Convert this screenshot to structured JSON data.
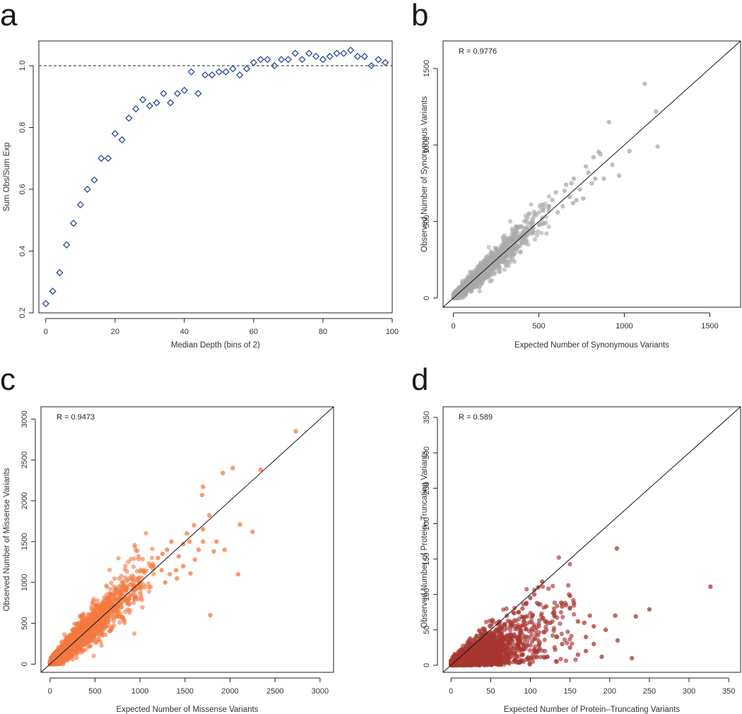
{
  "chart_data": [
    {
      "panel": "a",
      "type": "scatter",
      "marker": "diamond",
      "color": "#2c4a9a",
      "xlabel": "Median Depth (bins of 2)",
      "ylabel": "Sum Obs/Sum Exp",
      "xlim": [
        -2,
        100
      ],
      "ylim": [
        0.2,
        1.08
      ],
      "xticks": [
        0,
        20,
        40,
        60,
        80,
        100
      ],
      "yticks": [
        0.2,
        0.4,
        0.6,
        0.8,
        1.0
      ],
      "ytick_labels": [
        "0.2",
        "0.4",
        "0.6",
        "0.8",
        "1.0"
      ],
      "reference_line": {
        "y": 1.0,
        "style": "dashed"
      },
      "points": [
        [
          0,
          0.23
        ],
        [
          2,
          0.27
        ],
        [
          4,
          0.33
        ],
        [
          6,
          0.42
        ],
        [
          8,
          0.49
        ],
        [
          10,
          0.55
        ],
        [
          12,
          0.6
        ],
        [
          14,
          0.63
        ],
        [
          16,
          0.7
        ],
        [
          18,
          0.7
        ],
        [
          20,
          0.78
        ],
        [
          22,
          0.76
        ],
        [
          24,
          0.83
        ],
        [
          26,
          0.86
        ],
        [
          28,
          0.89
        ],
        [
          30,
          0.87
        ],
        [
          32,
          0.88
        ],
        [
          34,
          0.91
        ],
        [
          36,
          0.88
        ],
        [
          38,
          0.91
        ],
        [
          40,
          0.92
        ],
        [
          42,
          0.98
        ],
        [
          44,
          0.91
        ],
        [
          46,
          0.97
        ],
        [
          48,
          0.97
        ],
        [
          50,
          0.98
        ],
        [
          52,
          0.98
        ],
        [
          54,
          0.99
        ],
        [
          56,
          0.97
        ],
        [
          58,
          0.99
        ],
        [
          60,
          1.01
        ],
        [
          62,
          1.02
        ],
        [
          64,
          1.02
        ],
        [
          66,
          1.0
        ],
        [
          68,
          1.02
        ],
        [
          70,
          1.02
        ],
        [
          72,
          1.04
        ],
        [
          74,
          1.02
        ],
        [
          76,
          1.04
        ],
        [
          78,
          1.03
        ],
        [
          80,
          1.02
        ],
        [
          82,
          1.03
        ],
        [
          84,
          1.04
        ],
        [
          86,
          1.04
        ],
        [
          88,
          1.05
        ],
        [
          90,
          1.03
        ],
        [
          92,
          1.03
        ],
        [
          94,
          1.0
        ],
        [
          96,
          1.02
        ],
        [
          98,
          1.01
        ]
      ]
    },
    {
      "panel": "b",
      "type": "scatter",
      "color": "#a9a9a9",
      "r_text": "R = 0.9776",
      "xlabel": "Expected Number of Synonymous Variants",
      "ylabel": "Observed Number of Synonymous Variants",
      "xlim": [
        -60,
        1680
      ],
      "ylim": [
        -60,
        1680
      ],
      "xticks": [
        0,
        500,
        1000,
        1500
      ],
      "yticks": [
        0,
        500,
        1000,
        1500
      ],
      "diagonal": true,
      "n_bulk_points": 1600,
      "bulk_seed": 11,
      "bulk_params": {
        "x_scale": 155,
        "x_max": 560,
        "noise_base": 12,
        "noise_frac": 0.11
      },
      "outliers": [
        [
          1120,
          1400
        ],
        [
          1185,
          1220
        ],
        [
          1195,
          990
        ],
        [
          1030,
          960
        ],
        [
          910,
          1150
        ],
        [
          850,
          955
        ],
        [
          860,
          940
        ],
        [
          970,
          800
        ],
        [
          820,
          920
        ],
        [
          775,
          860
        ],
        [
          790,
          820
        ],
        [
          830,
          780
        ],
        [
          810,
          750
        ],
        [
          880,
          780
        ],
        [
          740,
          710
        ],
        [
          705,
          780
        ],
        [
          690,
          750
        ],
        [
          660,
          740
        ],
        [
          650,
          700
        ],
        [
          720,
          640
        ],
        [
          700,
          620
        ],
        [
          760,
          650
        ],
        [
          600,
          690
        ],
        [
          580,
          640
        ],
        [
          610,
          560
        ],
        [
          640,
          600
        ],
        [
          560,
          600
        ],
        [
          520,
          610
        ],
        [
          930,
          870
        ],
        [
          680,
          660
        ]
      ]
    },
    {
      "panel": "c",
      "type": "scatter",
      "color": "#f37941",
      "r_text": "R = 0.9473",
      "xlabel": "Expected Number of Missense Variants",
      "ylabel": "Observed Number of Missense Variants",
      "xlim": [
        -100,
        3150
      ],
      "ylim": [
        -100,
        3150
      ],
      "xticks": [
        0,
        500,
        1000,
        1500,
        2000,
        2500,
        3000
      ],
      "yticks": [
        0,
        500,
        1000,
        1500,
        2000,
        2500,
        3000
      ],
      "diagonal": true,
      "n_bulk_points": 2600,
      "bulk_seed": 23,
      "bulk_params": {
        "x_scale": 280,
        "x_max": 1150,
        "noise_base": 25,
        "noise_frac": 0.18
      },
      "outliers": [
        [
          2730,
          2850
        ],
        [
          2340,
          2380
        ],
        [
          2030,
          2400
        ],
        [
          1920,
          2340
        ],
        [
          1700,
          2170
        ],
        [
          1690,
          2070
        ],
        [
          1770,
          1820
        ],
        [
          1780,
          600
        ],
        [
          2110,
          1710
        ],
        [
          2250,
          1620
        ],
        [
          2090,
          1100
        ],
        [
          1520,
          1600
        ],
        [
          1600,
          1700
        ],
        [
          1550,
          1500
        ],
        [
          1480,
          1200
        ],
        [
          1430,
          1320
        ],
        [
          1400,
          1150
        ],
        [
          1350,
          1500
        ],
        [
          1300,
          1400
        ],
        [
          1250,
          1350
        ],
        [
          1480,
          1470
        ],
        [
          1650,
          1400
        ],
        [
          1700,
          1500
        ],
        [
          1610,
          1280
        ],
        [
          1850,
          1500
        ],
        [
          1820,
          1380
        ],
        [
          1200,
          1300
        ],
        [
          1330,
          1100
        ],
        [
          1410,
          1050
        ],
        [
          1560,
          1110
        ],
        [
          1150,
          1200
        ],
        [
          1280,
          1000
        ],
        [
          1240,
          1150
        ],
        [
          1700,
          1650
        ],
        [
          1940,
          1400
        ]
      ]
    },
    {
      "panel": "d",
      "type": "scatter",
      "color": "#a8362f",
      "r_text": "R = 0.589",
      "xlabel": "Expected Number of Protein–Truncating Variants",
      "ylabel": "Observed Number of Protein–Truncating Variants",
      "xlim": [
        -10,
        365
      ],
      "ylim": [
        -10,
        365
      ],
      "xticks": [
        0,
        50,
        100,
        150,
        200,
        250,
        300,
        350
      ],
      "yticks": [
        0,
        50,
        100,
        150,
        200,
        250,
        300,
        350
      ],
      "diagonal": true,
      "n_bulk_points": 2600,
      "bulk_seed": 37,
      "bulk_params": {
        "x_scale": 32,
        "x_max": 160
      },
      "outliers": [
        [
          327,
          111
        ],
        [
          209,
          165
        ],
        [
          250,
          79
        ],
        [
          233,
          69
        ],
        [
          228,
          10
        ],
        [
          210,
          35
        ],
        [
          207,
          70
        ],
        [
          195,
          50
        ],
        [
          180,
          55
        ],
        [
          175,
          70
        ],
        [
          170,
          40
        ],
        [
          168,
          60
        ],
        [
          160,
          62
        ],
        [
          155,
          88
        ],
        [
          150,
          98
        ],
        [
          145,
          85
        ],
        [
          140,
          83
        ],
        [
          130,
          75
        ],
        [
          125,
          60
        ],
        [
          120,
          83
        ],
        [
          115,
          118
        ],
        [
          110,
          110
        ],
        [
          105,
          100
        ],
        [
          100,
          95
        ],
        [
          95,
          88
        ],
        [
          90,
          80
        ],
        [
          85,
          75
        ],
        [
          180,
          30
        ],
        [
          170,
          20
        ],
        [
          160,
          15
        ],
        [
          150,
          25
        ],
        [
          140,
          30
        ],
        [
          190,
          12
        ]
      ]
    }
  ]
}
